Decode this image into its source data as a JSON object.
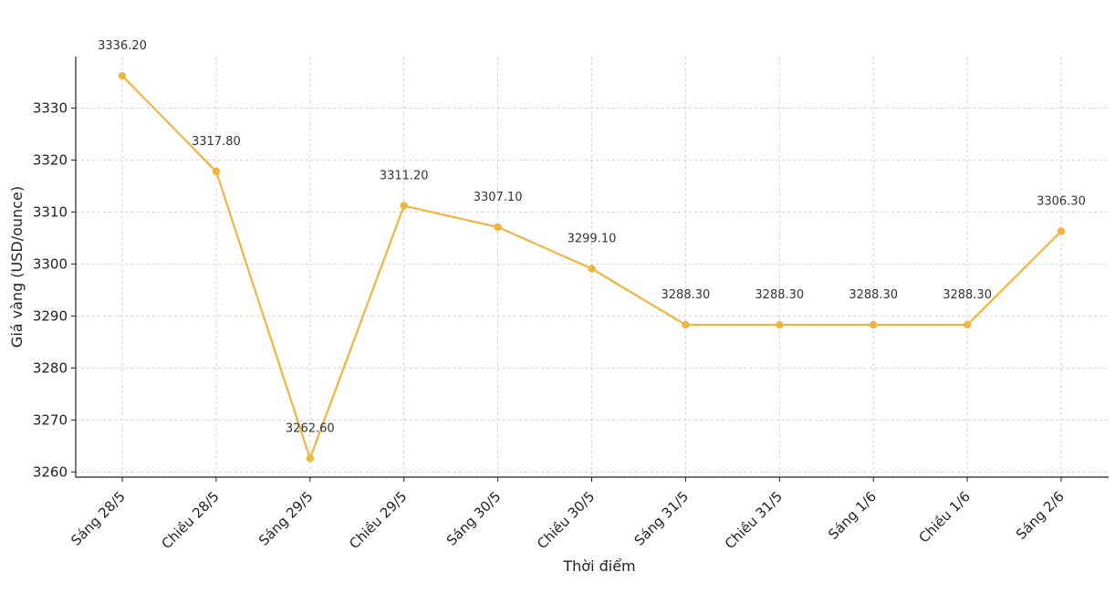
{
  "chart_data": {
    "type": "line",
    "title": "",
    "xlabel": "Thời điểm",
    "ylabel": "Giá vàng (USD/ounce)",
    "categories": [
      "Sáng 28/5",
      "Chiều 28/5",
      "Sáng 29/5",
      "Chiều 29/5",
      "Sáng 30/5",
      "Chiều 30/5",
      "Sáng 31/5",
      "Chiều 31/5",
      "Sáng 1/6",
      "Chiều 1/6",
      "Sáng 2/6"
    ],
    "series": [
      {
        "values": [
          3336.2,
          3317.8,
          3262.6,
          3311.2,
          3307.1,
          3299.1,
          3288.3,
          3288.3,
          3288.3,
          3288.3,
          3306.3
        ],
        "labels": [
          "3336.20",
          "3317.80",
          "3262.60",
          "3311.20",
          "3307.10",
          "3299.10",
          "3288.30",
          "3288.30",
          "3288.30",
          "3288.30",
          "3306.30"
        ],
        "color": "#f0b440"
      }
    ],
    "yticks": [
      3260,
      3270,
      3280,
      3290,
      3300,
      3310,
      3320,
      3330
    ],
    "ylim": [
      3259,
      3339.9
    ],
    "grid": true,
    "legend": "none"
  }
}
